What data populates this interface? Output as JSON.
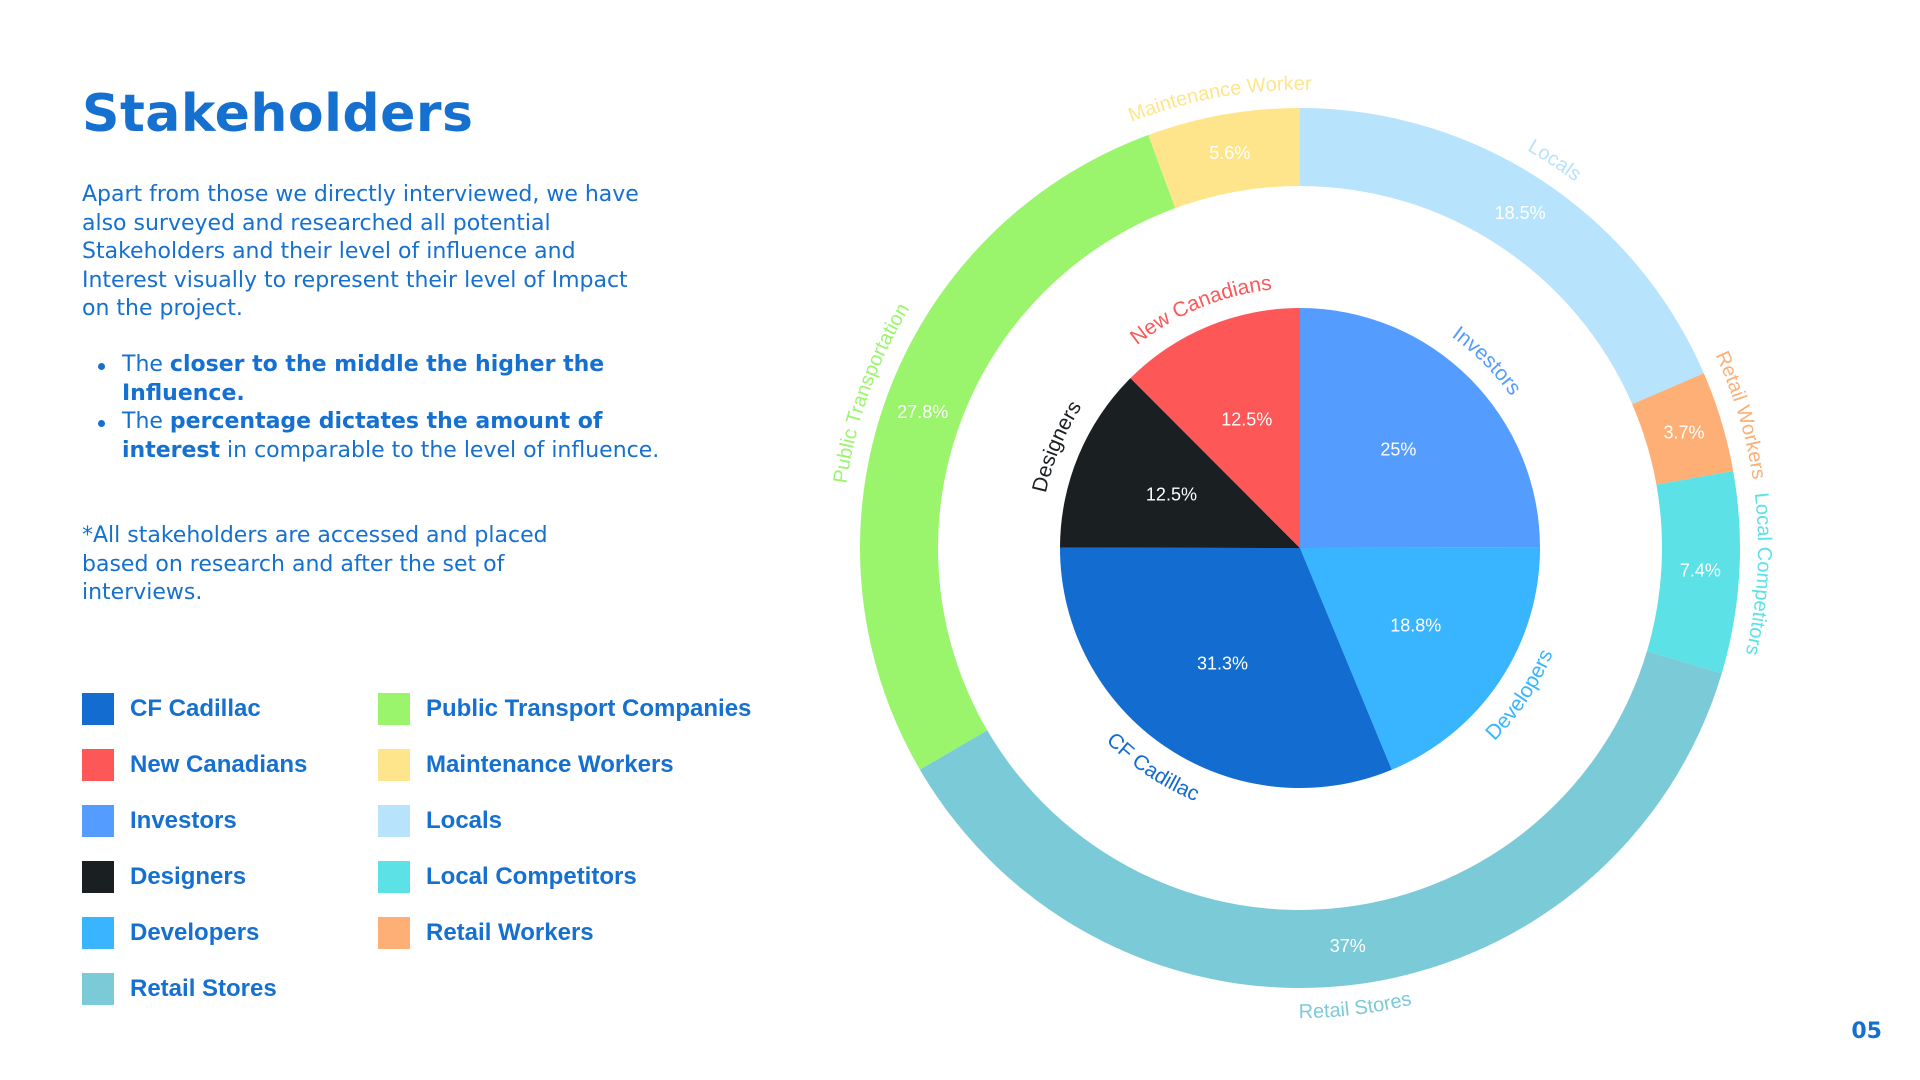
{
  "title": "Stakeholders",
  "intro": "Apart from those we directly interviewed, we have also surveyed and researched all potential Stakeholders and their level of influence and Interest visually to represent their level of Impact on the project.",
  "bullets": [
    {
      "pre": "The ",
      "bold": "closer to the middle the higher the Influence.",
      "post": ""
    },
    {
      "pre": "The ",
      "bold": "percentage dictates the amount of interest",
      "post": " in comparable to the level of influence."
    }
  ],
  "note": "*All stakeholders are accessed and placed based on research and after the set of interviews.",
  "page_number": "05",
  "legend": [
    {
      "label": "CF Cadillac",
      "color": "#136ccf"
    },
    {
      "label": "New Canadians",
      "color": "#fd5758"
    },
    {
      "label": "Investors",
      "color": "#559cff"
    },
    {
      "label": "Designers",
      "color": "#1a1f21"
    },
    {
      "label": "Developers",
      "color": "#38b5fe"
    },
    {
      "label": "Retail Stores",
      "color": "#7bcad7"
    },
    {
      "label": "Public Transport Companies",
      "color": "#9af56d"
    },
    {
      "label": "Maintenance Workers",
      "color": "#fee58b"
    },
    {
      "label": "Locals",
      "color": "#b8e3fd"
    },
    {
      "label": "Local Competitors",
      "color": "#5ce1e6"
    },
    {
      "label": "Retail Workers",
      "color": "#fdaf75"
    }
  ],
  "chart_data": {
    "type": "pie",
    "title": "",
    "note": "Two concentric rings; values are percent of interest per stakeholder",
    "series": [
      {
        "name": "inner",
        "categories": [
          "Investors",
          "Developers",
          "CF Cadillac",
          "Designers",
          "New Canadians"
        ],
        "values": [
          25,
          18.8,
          31.3,
          12.5,
          12.5
        ],
        "value_labels": [
          "25%",
          "18.8%",
          "31.3%",
          "12.5%",
          "12.5%"
        ],
        "colors": [
          "#559cff",
          "#38b5fe",
          "#136ccf",
          "#1a1f21",
          "#fd5758"
        ],
        "label_colors": [
          "#559cff",
          "#38b5fe",
          "#136ccf",
          "#1a1f21",
          "#fd5758"
        ]
      },
      {
        "name": "outer",
        "categories": [
          "Locals",
          "Retail Workers",
          "Local Competitors",
          "Retail Stores",
          "Public Transportation",
          "Maintenance Worker"
        ],
        "values": [
          18.5,
          3.7,
          7.4,
          37,
          27.8,
          5.6
        ],
        "value_labels": [
          "18.5%",
          "3.7%",
          "7.4%",
          "37%",
          "27.8%",
          "5.6%"
        ],
        "colors": [
          "#b8e3fd",
          "#fdaf75",
          "#5ce1e6",
          "#7bcad7",
          "#9af56d",
          "#fee58b"
        ],
        "label_colors": [
          "#b8e3fd",
          "#fdaf75",
          "#5ce1e6",
          "#7bcad7",
          "#9af56d",
          "#fee58b"
        ]
      }
    ]
  }
}
